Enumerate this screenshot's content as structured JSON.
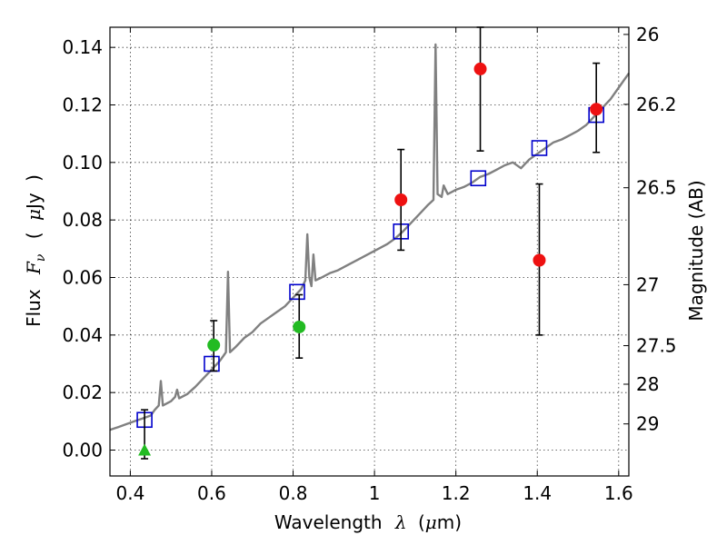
{
  "chart_data": {
    "type": "scatter",
    "xlabel": "Wavelength",
    "xlabel_symbol": "λ",
    "xlabel_unit_open": "(",
    "xlabel_unit_mu": "μ",
    "xlabel_unit_rest": "m)",
    "ylabel": "Flux",
    "ylabel_symbol": "F",
    "ylabel_symbol_sub": "ν",
    "ylabel_unit_open": "(",
    "ylabel_unit_mu": "μ",
    "ylabel_unit_rest": "Jy",
    "ylabel_unit_close": ")",
    "y2label": "Magnitude (AB)",
    "xlim": [
      0.35,
      1.625
    ],
    "ylim": [
      -0.009,
      0.147
    ],
    "grid": true,
    "x_ticks": [
      {
        "value": 0.4,
        "label": "0.4"
      },
      {
        "value": 0.6,
        "label": "0.6"
      },
      {
        "value": 0.8,
        "label": "0.8"
      },
      {
        "value": 1.0,
        "label": "1"
      },
      {
        "value": 1.2,
        "label": "1.2"
      },
      {
        "value": 1.4,
        "label": "1.4"
      },
      {
        "value": 1.6,
        "label": "1.6"
      }
    ],
    "y_ticks": [
      {
        "value": 0.0,
        "label": "0.00"
      },
      {
        "value": 0.02,
        "label": "0.02"
      },
      {
        "value": 0.04,
        "label": "0.04"
      },
      {
        "value": 0.06,
        "label": "0.06"
      },
      {
        "value": 0.08,
        "label": "0.08"
      },
      {
        "value": 0.1,
        "label": "0.10"
      },
      {
        "value": 0.12,
        "label": "0.12"
      },
      {
        "value": 0.14,
        "label": "0.14"
      }
    ],
    "y2_ticks": [
      {
        "flux": 0.1445,
        "label": "26"
      },
      {
        "flux": 0.1202,
        "label": "26.2"
      },
      {
        "flux": 0.0912,
        "label": "26.5"
      },
      {
        "flux": 0.0575,
        "label": "27"
      },
      {
        "flux": 0.0363,
        "label": "27.5"
      },
      {
        "flux": 0.0229,
        "label": "28"
      },
      {
        "flux": 0.0091,
        "label": "29"
      }
    ],
    "series": [
      {
        "kind": "line",
        "color": "#808080",
        "points": [
          [
            0.35,
            0.007
          ],
          [
            0.37,
            0.008
          ],
          [
            0.39,
            0.009
          ],
          [
            0.41,
            0.01
          ],
          [
            0.43,
            0.011
          ],
          [
            0.45,
            0.012
          ],
          [
            0.46,
            0.014
          ],
          [
            0.47,
            0.0155
          ],
          [
            0.475,
            0.024
          ],
          [
            0.48,
            0.0155
          ],
          [
            0.5,
            0.017
          ],
          [
            0.51,
            0.0185
          ],
          [
            0.515,
            0.021
          ],
          [
            0.52,
            0.018
          ],
          [
            0.54,
            0.0195
          ],
          [
            0.56,
            0.022
          ],
          [
            0.58,
            0.025
          ],
          [
            0.6,
            0.028
          ],
          [
            0.62,
            0.031
          ],
          [
            0.63,
            0.033
          ],
          [
            0.635,
            0.034
          ],
          [
            0.64,
            0.062
          ],
          [
            0.645,
            0.034
          ],
          [
            0.66,
            0.036
          ],
          [
            0.68,
            0.039
          ],
          [
            0.7,
            0.041
          ],
          [
            0.72,
            0.044
          ],
          [
            0.74,
            0.046
          ],
          [
            0.76,
            0.048
          ],
          [
            0.78,
            0.05
          ],
          [
            0.8,
            0.053
          ],
          [
            0.81,
            0.0545
          ],
          [
            0.82,
            0.056
          ],
          [
            0.83,
            0.059
          ],
          [
            0.835,
            0.075
          ],
          [
            0.84,
            0.06
          ],
          [
            0.845,
            0.057
          ],
          [
            0.85,
            0.068
          ],
          [
            0.855,
            0.059
          ],
          [
            0.87,
            0.06
          ],
          [
            0.89,
            0.0615
          ],
          [
            0.91,
            0.0625
          ],
          [
            0.93,
            0.064
          ],
          [
            0.95,
            0.0655
          ],
          [
            0.97,
            0.067
          ],
          [
            0.99,
            0.0685
          ],
          [
            1.01,
            0.07
          ],
          [
            1.03,
            0.0715
          ],
          [
            1.05,
            0.0735
          ],
          [
            1.07,
            0.076
          ],
          [
            1.09,
            0.079
          ],
          [
            1.11,
            0.082
          ],
          [
            1.13,
            0.085
          ],
          [
            1.145,
            0.087
          ],
          [
            1.15,
            0.141
          ],
          [
            1.155,
            0.089
          ],
          [
            1.165,
            0.088
          ],
          [
            1.17,
            0.092
          ],
          [
            1.18,
            0.089
          ],
          [
            1.2,
            0.0905
          ],
          [
            1.22,
            0.0915
          ],
          [
            1.24,
            0.093
          ],
          [
            1.26,
            0.095
          ],
          [
            1.28,
            0.096
          ],
          [
            1.3,
            0.0975
          ],
          [
            1.32,
            0.099
          ],
          [
            1.34,
            0.1
          ],
          [
            1.36,
            0.098
          ],
          [
            1.38,
            0.101
          ],
          [
            1.4,
            0.103
          ],
          [
            1.42,
            0.105
          ],
          [
            1.44,
            0.107
          ],
          [
            1.46,
            0.108
          ],
          [
            1.48,
            0.1095
          ],
          [
            1.5,
            0.111
          ],
          [
            1.52,
            0.113
          ],
          [
            1.54,
            0.116
          ],
          [
            1.56,
            0.119
          ],
          [
            1.58,
            0.122
          ],
          [
            1.6,
            0.126
          ],
          [
            1.625,
            0.131
          ]
        ]
      },
      {
        "kind": "open-squares",
        "color": "#0000cc",
        "points": [
          [
            0.435,
            0.0105
          ],
          [
            0.6,
            0.03
          ],
          [
            0.81,
            0.055
          ],
          [
            1.065,
            0.076
          ],
          [
            1.255,
            0.0945
          ],
          [
            1.405,
            0.105
          ],
          [
            1.545,
            0.1165
          ]
        ]
      },
      {
        "kind": "errorbars",
        "color": "#000000",
        "points": [
          {
            "x": 0.435,
            "y": 0.0105,
            "low": -0.003,
            "high": 0.014
          },
          {
            "x": 0.605,
            "y": 0.031,
            "low": 0.0275,
            "high": 0.045
          },
          {
            "x": 0.815,
            "y": 0.043,
            "low": 0.032,
            "high": 0.054
          },
          {
            "x": 1.065,
            "y": 0.087,
            "low": 0.0695,
            "high": 0.1045
          },
          {
            "x": 1.26,
            "y": 0.1325,
            "low": 0.104,
            "high": 0.147
          },
          {
            "x": 1.405,
            "y": 0.066,
            "low": 0.04,
            "high": 0.0925
          },
          {
            "x": 1.545,
            "y": 0.1185,
            "low": 0.1035,
            "high": 0.1345
          }
        ]
      },
      {
        "kind": "green-circles",
        "color": "#22bb22",
        "points": [
          [
            0.605,
            0.0365
          ],
          [
            0.815,
            0.0428
          ]
        ]
      },
      {
        "kind": "green-triangle",
        "color": "#22bb22",
        "points": [
          [
            0.435,
            0.0
          ]
        ]
      },
      {
        "kind": "red-circles",
        "color": "#ee1111",
        "points": [
          [
            1.065,
            0.087
          ],
          [
            1.26,
            0.1325
          ],
          [
            1.405,
            0.066
          ],
          [
            1.545,
            0.1185
          ]
        ]
      }
    ]
  }
}
